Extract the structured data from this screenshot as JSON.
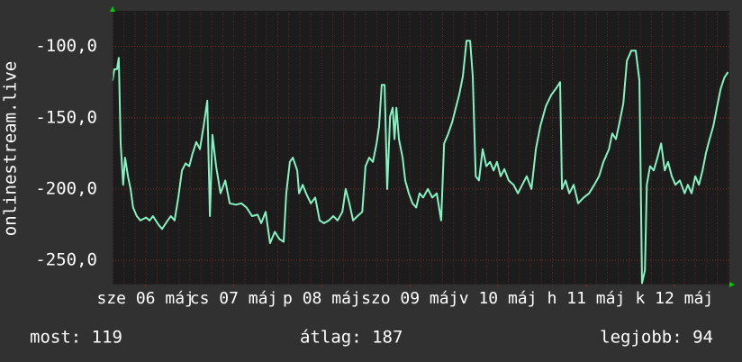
{
  "chart_data": {
    "type": "line",
    "ylabel": "onlinestream.live",
    "color": "#86f2c3",
    "grid": true,
    "xlim": [
      0,
      168
    ],
    "xticks": [
      {
        "value": 9,
        "label": "sze 06 máj"
      },
      {
        "value": 33,
        "label": "cs 07 máj"
      },
      {
        "value": 57,
        "label": "p 08 máj"
      },
      {
        "value": 81,
        "label": "szo 09 máj"
      },
      {
        "value": 105,
        "label": "v 10 máj"
      },
      {
        "value": 129,
        "label": "h 11 máj"
      },
      {
        "value": 153,
        "label": "k 12 máj"
      }
    ],
    "ylim": [
      -267,
      -75
    ],
    "yticks": [
      {
        "value": -250,
        "label": "-250,0"
      },
      {
        "value": -200,
        "label": "-200,0"
      },
      {
        "value": -150,
        "label": "-150,0"
      },
      {
        "value": -100,
        "label": "-100,0"
      }
    ],
    "x": [
      0,
      0.5,
      1.2,
      1.7,
      2.2,
      2.9,
      3.4,
      4.2,
      4.9,
      5.6,
      6.6,
      7.6,
      9.1,
      10.1,
      11.0,
      12.5,
      13.5,
      15.0,
      15.9,
      16.9,
      17.9,
      18.9,
      19.9,
      20.9,
      21.8,
      22.8,
      23.8,
      24.8,
      25.8,
      26.5,
      27.2,
      28.2,
      29.4,
      30.7,
      31.9,
      33.6,
      35.1,
      36.5,
      38.0,
      39.5,
      40.5,
      41.7,
      42.9,
      44.2,
      45.4,
      46.6,
      47.3,
      48.3,
      49.1,
      50.3,
      50.8,
      51.8,
      52.7,
      54.0,
      55.2,
      56.4,
      57.6,
      58.9,
      60.1,
      61.3,
      62.6,
      63.5,
      64.5,
      65.5,
      66.7,
      68.0,
      68.9,
      69.9,
      70.9,
      71.9,
      72.6,
      73.3,
      74.1,
      74.8,
      75.6,
      76.3,
      76.8,
      77.3,
      78.0,
      79.0,
      79.7,
      80.7,
      81.7,
      82.7,
      83.6,
      84.6,
      85.9,
      87.1,
      88.3,
      89.5,
      90.3,
      91.3,
      92.5,
      93.5,
      94.4,
      95.4,
      96.4,
      97.4,
      98.1,
      98.9,
      99.8,
      100.8,
      101.8,
      102.8,
      103.8,
      104.7,
      105.7,
      106.7,
      107.9,
      109.2,
      110.4,
      111.6,
      112.8,
      114.1,
      115.3,
      116.5,
      118.0,
      119.5,
      120.9,
      121.9,
      122.4,
      123.4,
      124.4,
      125.6,
      126.8,
      128.3,
      129.8,
      131.2,
      132.5,
      133.7,
      135.2,
      136.1,
      137.1,
      138.1,
      139.1,
      140.1,
      141.3,
      142.5,
      143.5,
      144.2,
      145.0,
      145.5,
      146.4,
      147.4,
      148.4,
      149.4,
      150.4,
      151.3,
      152.3,
      153.3,
      154.5,
      155.8,
      156.7,
      157.7,
      158.7,
      159.7,
      160.7,
      161.6,
      162.6,
      163.6,
      164.6,
      165.6,
      166.6,
      167.6
    ],
    "values": [
      -124,
      -116,
      -116,
      -108,
      -168,
      -197,
      -178,
      -191,
      -200,
      -213,
      -219,
      -222,
      -220,
      -222,
      -219,
      -225,
      -228,
      -222,
      -219,
      -222,
      -206,
      -187,
      -182,
      -184,
      -175,
      -167,
      -172,
      -156,
      -138,
      -219,
      -162,
      -184,
      -203,
      -194,
      -210,
      -211,
      -210,
      -213,
      -219,
      -218,
      -224,
      -216,
      -238,
      -230,
      -235,
      -237,
      -203,
      -181,
      -178,
      -187,
      -203,
      -197,
      -203,
      -210,
      -206,
      -222,
      -224,
      -222,
      -219,
      -222,
      -216,
      -200,
      -210,
      -222,
      -219,
      -216,
      -184,
      -178,
      -181,
      -168,
      -156,
      -127,
      -127,
      -200,
      -149,
      -143,
      -165,
      -143,
      -165,
      -178,
      -194,
      -203,
      -210,
      -213,
      -203,
      -206,
      -200,
      -206,
      -203,
      -222,
      -168,
      -162,
      -153,
      -143,
      -134,
      -121,
      -96,
      -96,
      -121,
      -191,
      -194,
      -172,
      -184,
      -181,
      -187,
      -181,
      -191,
      -186,
      -194,
      -197,
      -203,
      -197,
      -191,
      -200,
      -172,
      -156,
      -142,
      -134,
      -129,
      -125,
      -200,
      -194,
      -203,
      -197,
      -210,
      -206,
      -203,
      -197,
      -191,
      -181,
      -172,
      -161,
      -165,
      -153,
      -140,
      -110,
      -103,
      -103,
      -124,
      -266,
      -257,
      -197,
      -184,
      -187,
      -178,
      -168,
      -187,
      -181,
      -191,
      -197,
      -194,
      -203,
      -197,
      -203,
      -191,
      -197,
      -187,
      -175,
      -165,
      -156,
      -143,
      -130,
      -122,
      -118
    ],
    "footer": [
      "most: 119",
      "átlag: 187",
      "legjobb: 94"
    ]
  }
}
